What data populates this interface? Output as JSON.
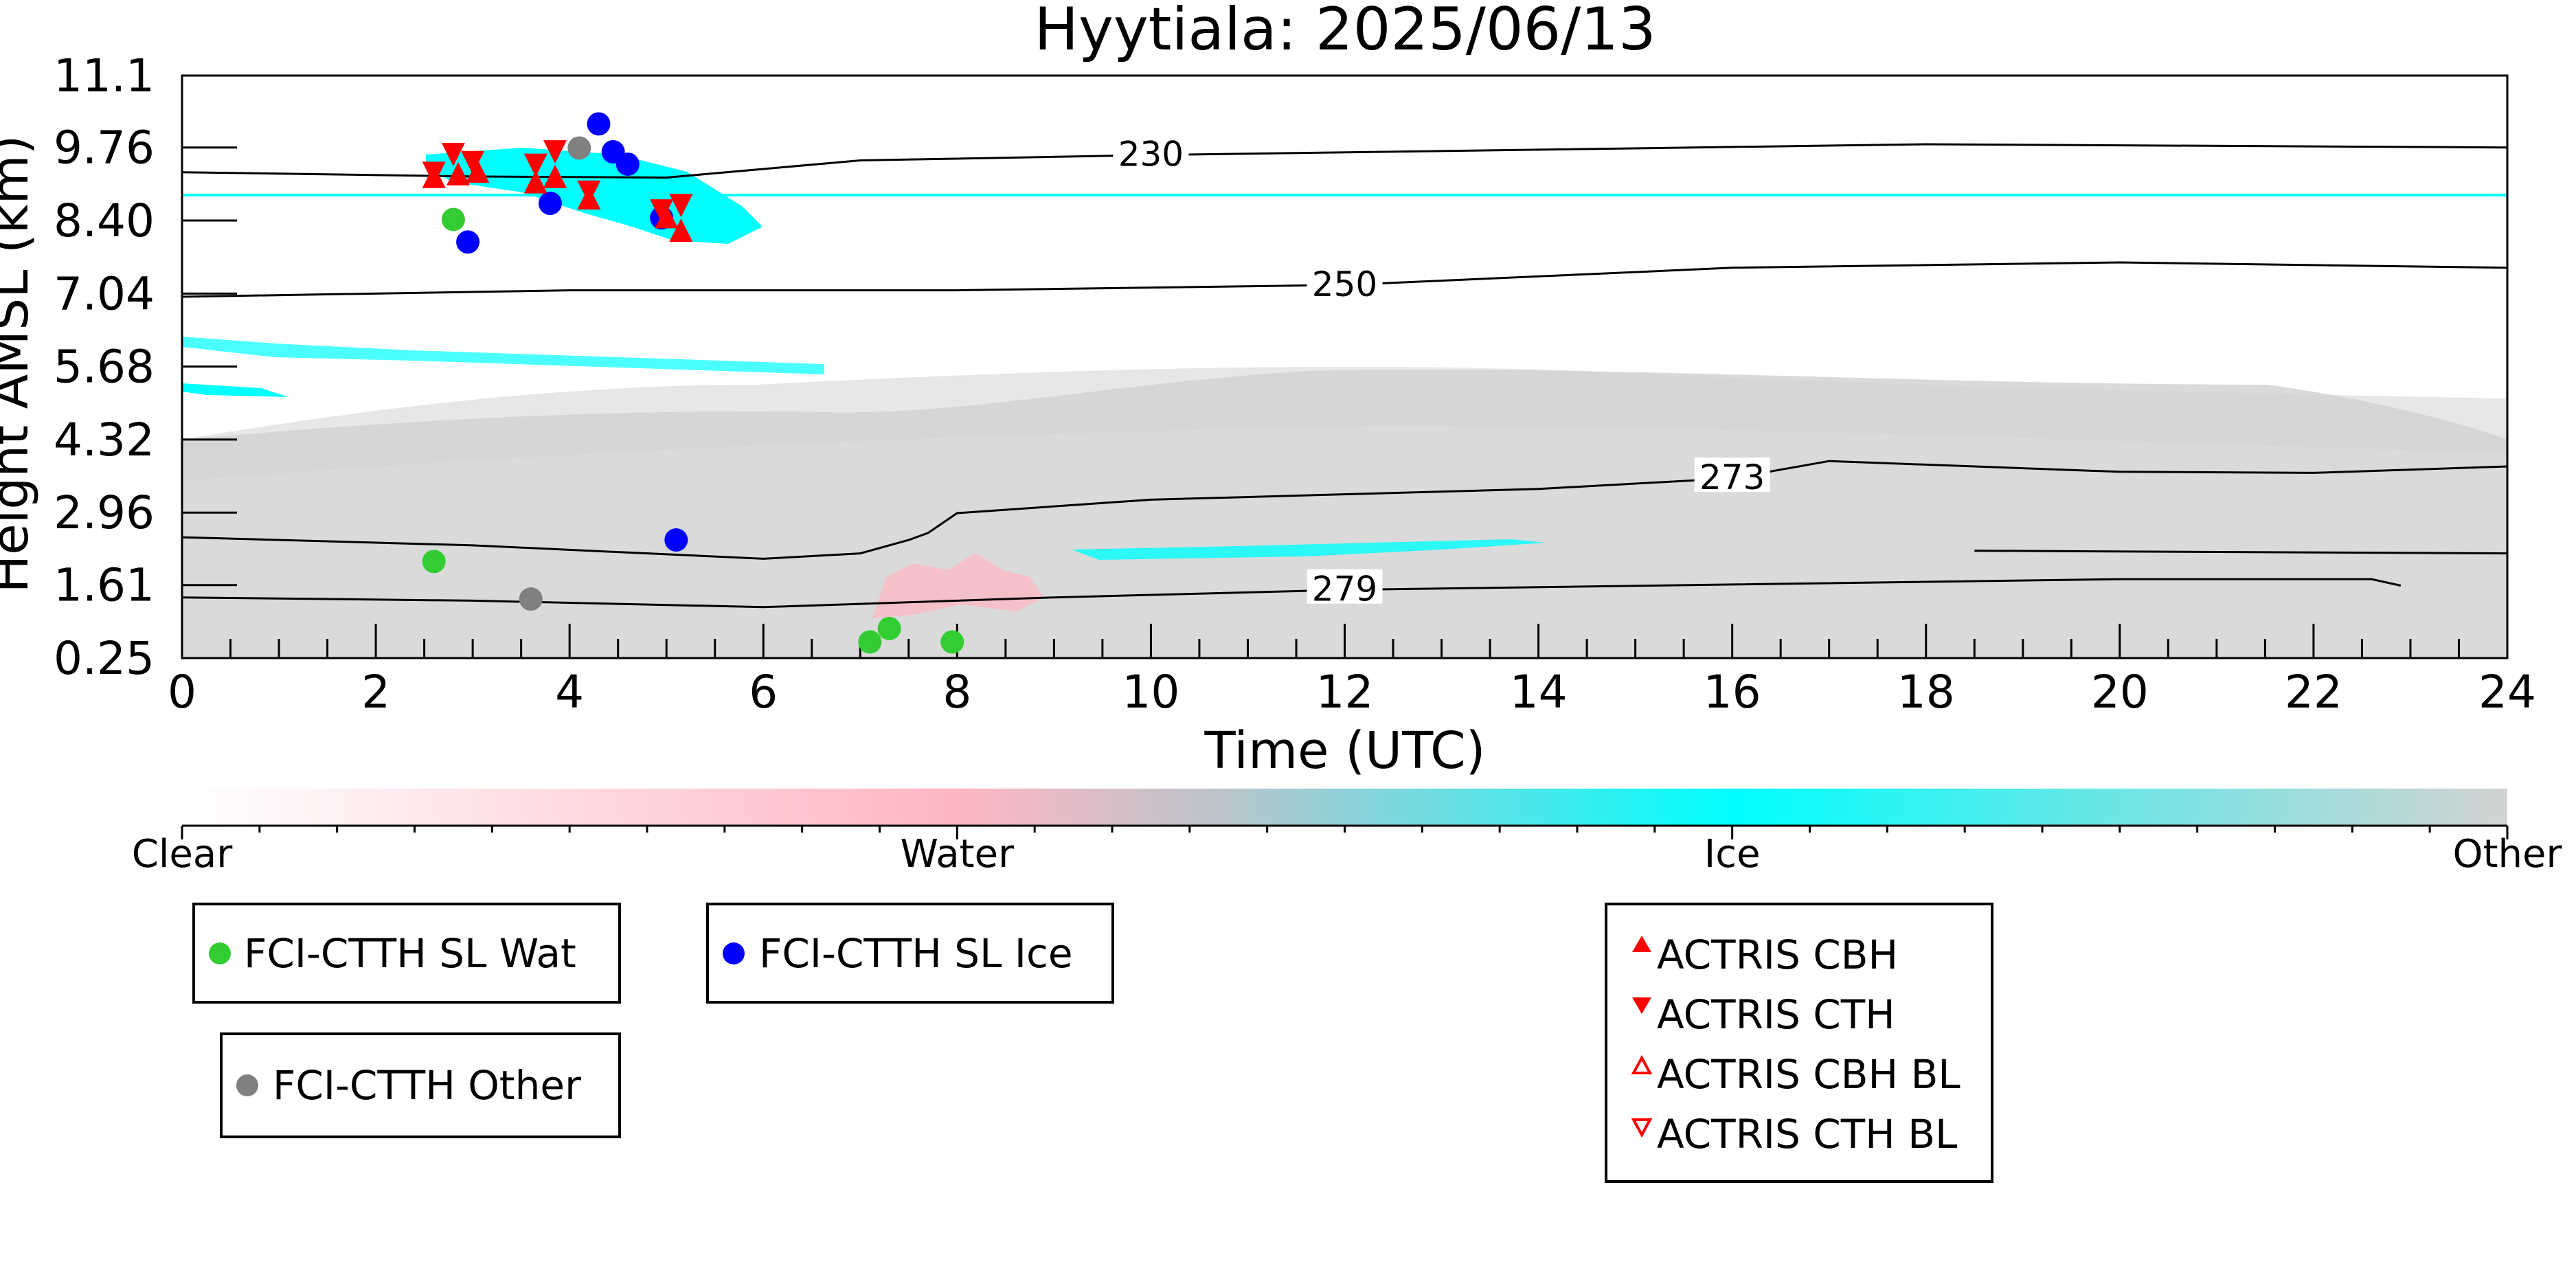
{
  "chart_data": {
    "type": "scatter",
    "title": "Hyytiala: 2025/06/13",
    "xlabel": "Time (UTC)",
    "ylabel": "Height AMSL (km)",
    "xlim": [
      0,
      24
    ],
    "ylim": [
      0.25,
      11.1
    ],
    "x_ticks": [
      "0",
      "2",
      "4",
      "6",
      "8",
      "10",
      "12",
      "14",
      "16",
      "18",
      "20",
      "22",
      "24"
    ],
    "y_ticks": [
      "0.25",
      "1.61",
      "2.96",
      "4.32",
      "5.68",
      "7.04",
      "8.40",
      "9.76",
      "11.1"
    ],
    "grid": false,
    "colorbar": {
      "categories": [
        "Clear",
        "Water",
        "Ice",
        "Other"
      ],
      "colors": [
        "#ffffff",
        "#ffb6c1",
        "#00ffff",
        "#d3d3d3"
      ]
    },
    "contours": [
      {
        "label": "230",
        "points": [
          [
            0,
            9.3
          ],
          [
            3,
            9.22
          ],
          [
            5,
            9.2
          ],
          [
            7,
            9.52
          ],
          [
            10,
            9.62
          ],
          [
            14,
            9.72
          ],
          [
            18,
            9.82
          ],
          [
            24,
            9.76
          ]
        ]
      },
      {
        "label": "250",
        "points": [
          [
            0,
            6.98
          ],
          [
            4,
            7.1
          ],
          [
            8,
            7.1
          ],
          [
            12,
            7.2
          ],
          [
            16,
            7.52
          ],
          [
            20,
            7.62
          ],
          [
            24,
            7.52
          ]
        ]
      },
      {
        "label": "273",
        "points": [
          [
            7.7,
            2.58
          ],
          [
            8,
            2.95
          ],
          [
            10,
            3.2
          ],
          [
            14,
            3.4
          ],
          [
            16,
            3.6
          ],
          [
            17,
            3.92
          ],
          [
            20,
            3.72
          ],
          [
            22,
            3.7
          ],
          [
            24,
            3.82
          ]
        ]
      },
      {
        "label": "279",
        "points": [
          [
            0,
            1.38
          ],
          [
            3,
            1.32
          ],
          [
            6,
            1.2
          ],
          [
            9,
            1.38
          ],
          [
            12,
            1.52
          ],
          [
            16,
            1.62
          ],
          [
            20,
            1.72
          ],
          [
            22.6,
            1.72
          ],
          [
            22.9,
            1.6
          ]
        ]
      },
      {
        "label": "",
        "points": [
          [
            0,
            2.5
          ],
          [
            3,
            2.35
          ],
          [
            6,
            2.1
          ],
          [
            7,
            2.2
          ],
          [
            7.5,
            2.45
          ],
          [
            7.7,
            2.58
          ]
        ]
      },
      {
        "label": "",
        "points": [
          [
            18.5,
            2.25
          ],
          [
            24,
            2.2
          ]
        ]
      }
    ],
    "series": [
      {
        "name": "FCI-CTTH SL Wat",
        "marker": "circle",
        "color": "#33cc33",
        "points": [
          [
            2.6,
            2.05
          ],
          [
            2.8,
            8.42
          ],
          [
            7.1,
            0.55
          ],
          [
            7.3,
            0.8
          ],
          [
            7.95,
            0.55
          ]
        ]
      },
      {
        "name": "FCI-CTTH SL Ice",
        "marker": "circle",
        "color": "#0000ff",
        "points": [
          [
            2.95,
            8.0
          ],
          [
            3.8,
            8.72
          ],
          [
            4.3,
            10.2
          ],
          [
            4.45,
            9.68
          ],
          [
            4.6,
            9.45
          ],
          [
            4.95,
            8.45
          ],
          [
            5.1,
            2.45
          ]
        ]
      },
      {
        "name": "FCI-CTTH Other",
        "marker": "circle",
        "color": "#808080",
        "points": [
          [
            3.6,
            1.35
          ],
          [
            4.1,
            9.75
          ]
        ]
      },
      {
        "name": "ACTRIS CBH",
        "marker": "triangle-up",
        "color": "#ff0000",
        "points": [
          [
            2.6,
            9.2
          ],
          [
            2.85,
            9.25
          ],
          [
            3.05,
            9.3
          ],
          [
            3.65,
            9.1
          ],
          [
            3.85,
            9.2
          ],
          [
            4.2,
            8.8
          ],
          [
            5.0,
            8.45
          ],
          [
            5.15,
            8.2
          ]
        ]
      },
      {
        "name": "ACTRIS CTH",
        "marker": "triangle-down",
        "color": "#ff0000",
        "points": [
          [
            2.6,
            9.3
          ],
          [
            2.8,
            9.65
          ],
          [
            3.0,
            9.5
          ],
          [
            3.65,
            9.45
          ],
          [
            3.85,
            9.7
          ],
          [
            4.2,
            8.95
          ],
          [
            4.95,
            8.6
          ],
          [
            5.15,
            8.7
          ]
        ]
      },
      {
        "name": "ACTRIS CBH BL",
        "marker": "triangle-up-open",
        "color": "#ff0000",
        "points": []
      },
      {
        "name": "ACTRIS CTH BL",
        "marker": "triangle-down-open",
        "color": "#ff0000",
        "points": []
      }
    ],
    "legends": [
      {
        "entries": [
          "FCI-CTTH SL Wat"
        ]
      },
      {
        "entries": [
          "FCI-CTTH SL Ice"
        ]
      },
      {
        "entries": [
          "FCI-CTTH Other"
        ]
      },
      {
        "entries": [
          "ACTRIS CBH",
          "ACTRIS CTH",
          "ACTRIS CBH BL",
          "ACTRIS CTH BL"
        ]
      }
    ]
  }
}
